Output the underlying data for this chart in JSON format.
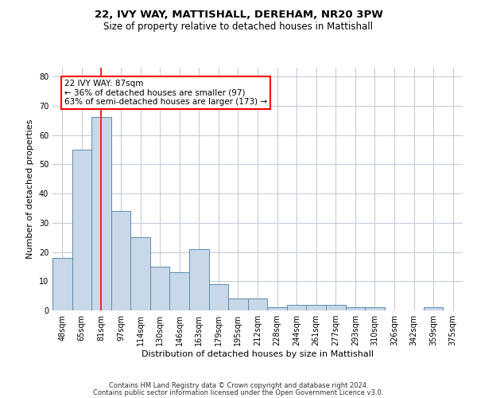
{
  "title_line1": "22, IVY WAY, MATTISHALL, DEREHAM, NR20 3PW",
  "title_line2": "Size of property relative to detached houses in Mattishall",
  "xlabel": "Distribution of detached houses by size in Mattishall",
  "ylabel": "Number of detached properties",
  "categories": [
    "48sqm",
    "65sqm",
    "81sqm",
    "97sqm",
    "114sqm",
    "130sqm",
    "146sqm",
    "163sqm",
    "179sqm",
    "195sqm",
    "212sqm",
    "228sqm",
    "244sqm",
    "261sqm",
    "277sqm",
    "293sqm",
    "310sqm",
    "326sqm",
    "342sqm",
    "359sqm",
    "375sqm"
  ],
  "values": [
    18,
    55,
    66,
    34,
    25,
    15,
    13,
    21,
    9,
    4,
    4,
    1,
    2,
    2,
    2,
    1,
    1,
    0,
    0,
    1,
    0
  ],
  "bar_color": "#c8d8e8",
  "bar_edge_color": "#5a8ab0",
  "bar_width": 1.0,
  "red_line_x": 2.0,
  "annotation_text": "22 IVY WAY: 87sqm\n← 36% of detached houses are smaller (97)\n63% of semi-detached houses are larger (173) →",
  "annotation_box_color": "white",
  "annotation_box_edge_color": "red",
  "ylim": [
    0,
    83
  ],
  "yticks": [
    0,
    10,
    20,
    30,
    40,
    50,
    60,
    70,
    80
  ],
  "grid_color": "#c0c8d8",
  "background_color": "white",
  "footer_line1": "Contains HM Land Registry data © Crown copyright and database right 2024.",
  "footer_line2": "Contains public sector information licensed under the Open Government Licence v3.0.",
  "title_fontsize": 9.5,
  "subtitle_fontsize": 8.5,
  "axis_label_fontsize": 8,
  "tick_fontsize": 7,
  "annotation_fontsize": 7.5,
  "footer_fontsize": 6
}
